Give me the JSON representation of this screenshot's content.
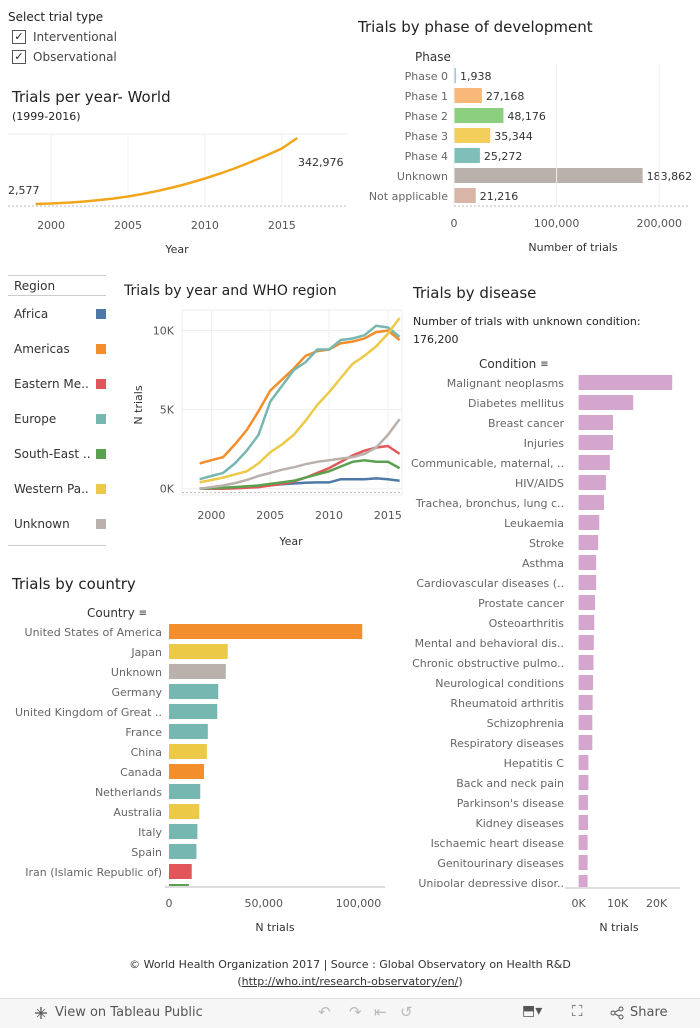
{
  "filter": {
    "title": "Select trial type",
    "options": [
      {
        "label": "Interventional",
        "checked": true
      },
      {
        "label": "Observational",
        "checked": true
      }
    ]
  },
  "trials_per_year": {
    "title": "Trials per year- World",
    "subtitle": "(1999-2016)",
    "start_label": "2,577",
    "end_label": "342,976",
    "x_ticks": [
      "2000",
      "2005",
      "2010",
      "2015"
    ],
    "xlabel": "Year"
  },
  "phase": {
    "title": "Trials by phase of development",
    "header": "Phase",
    "xlabel": "Number of trials",
    "x_ticks": [
      "0",
      "100,000",
      "200,000"
    ]
  },
  "region_legend": {
    "title": "Region",
    "items": [
      {
        "label": "Africa",
        "color": "#4e79a7"
      },
      {
        "label": "Americas",
        "color": "#f28e2b"
      },
      {
        "label": "Eastern Me..",
        "color": "#e15759"
      },
      {
        "label": "Europe",
        "color": "#76b7b2"
      },
      {
        "label": "South-East ..",
        "color": "#59a14f"
      },
      {
        "label": "Western Pa..",
        "color": "#edc948"
      },
      {
        "label": "Unknown",
        "color": "#bab0ac"
      }
    ]
  },
  "region_chart": {
    "title": "Trials by year and WHO region",
    "ylabel": "N trials",
    "xlabel": "Year",
    "y_ticks": [
      "0K",
      "5K",
      "10K"
    ],
    "x_ticks": [
      "2000",
      "2005",
      "2010",
      "2015"
    ]
  },
  "disease": {
    "title": "Trials by disease",
    "note": "Number of trials with unknown condition:",
    "note_value": "176,200",
    "header": "Condition",
    "xlabel": "N trials",
    "x_ticks": [
      "0K",
      "10K",
      "20K"
    ]
  },
  "country": {
    "title": "Trials by country",
    "header": "Country",
    "xlabel": "N trials",
    "x_ticks": [
      "0",
      "50,000",
      "100,000"
    ]
  },
  "footer": {
    "credit": "© World Health Organization 2017 | Source : Global Observatory on Health R&D",
    "link_open": "(",
    "link": "http://who.int/research-observatory/en/",
    "link_close": ")"
  },
  "toolbar": {
    "view_label": "View on Tableau Public",
    "share_label": "Share"
  },
  "chart_data": [
    {
      "id": "trials_per_year",
      "type": "line",
      "title": "Trials per year- World",
      "xlabel": "Year",
      "x": [
        1999,
        2000,
        2001,
        2002,
        2003,
        2004,
        2005,
        2006,
        2007,
        2008,
        2009,
        2010,
        2011,
        2012,
        2013,
        2014,
        2015,
        2016
      ],
      "series": [
        {
          "values": [
            2577,
            5000,
            9000,
            14500,
            21500,
            30500,
            41500,
            55000,
            71000,
            89500,
            110500,
            134000,
            160000,
            188500,
            219500,
            253000,
            289000,
            342976
          ],
          "color": "#f2a51a"
        }
      ],
      "xlim": [
        1997.2,
        2019.3
      ]
    },
    {
      "id": "phase",
      "type": "bar",
      "title": "Trials by phase of development",
      "xlabel": "Number of trials",
      "categories": [
        "Phase 0",
        "Phase 1",
        "Phase 2",
        "Phase 3",
        "Phase 4",
        "Unknown",
        "Not applicable"
      ],
      "values": [
        1938,
        27168,
        48176,
        35344,
        25272,
        183862,
        21216
      ],
      "value_labels": [
        "1,938",
        "27,168",
        "48,176",
        "35,344",
        "25,272",
        "183,862",
        "21,216"
      ],
      "colors": [
        "#9ecae1",
        "#f8b878",
        "#8ccf7e",
        "#f2cf5b",
        "#7fbfba",
        "#bab0ac",
        "#d8b5a5"
      ],
      "xlim": [
        0,
        230000
      ]
    },
    {
      "id": "region",
      "type": "line",
      "title": "Trials by year and WHO region",
      "xlabel": "Year",
      "ylabel": "N trials",
      "x": [
        1999,
        2000,
        2001,
        2002,
        2003,
        2004,
        2005,
        2006,
        2007,
        2008,
        2009,
        2010,
        2011,
        2012,
        2013,
        2014,
        2015,
        2016
      ],
      "series": [
        {
          "name": "Africa",
          "color": "#4e79a7",
          "values": [
            10,
            20,
            50,
            80,
            130,
            180,
            220,
            280,
            330,
            380,
            400,
            400,
            600,
            600,
            600,
            650,
            600,
            500
          ]
        },
        {
          "name": "Americas",
          "color": "#f28e2b",
          "values": [
            1600,
            1800,
            2000,
            2800,
            3700,
            4900,
            6200,
            6900,
            7600,
            8400,
            8700,
            8800,
            9200,
            9300,
            9500,
            9900,
            10000,
            9400
          ]
        },
        {
          "name": "Eastern Me..",
          "color": "#e15759",
          "values": [
            0,
            0,
            0,
            20,
            60,
            100,
            200,
            300,
            450,
            700,
            1000,
            1300,
            1700,
            2100,
            2400,
            2600,
            2700,
            2200
          ]
        },
        {
          "name": "Europe",
          "color": "#76b7b2",
          "values": [
            600,
            800,
            1000,
            1600,
            2400,
            3400,
            5500,
            6500,
            7500,
            8000,
            8800,
            8800,
            9400,
            9500,
            9700,
            10300,
            10200,
            9600
          ]
        },
        {
          "name": "South-East ..",
          "color": "#59a14f",
          "values": [
            0,
            30,
            60,
            100,
            150,
            200,
            300,
            400,
            500,
            700,
            900,
            1100,
            1400,
            1700,
            1800,
            1700,
            1700,
            1300
          ]
        },
        {
          "name": "Western Pa..",
          "color": "#edc948",
          "values": [
            400,
            550,
            700,
            900,
            1100,
            1600,
            2300,
            2800,
            3400,
            4300,
            5300,
            6100,
            7000,
            7900,
            8400,
            9000,
            9800,
            10800
          ]
        },
        {
          "name": "Unknown",
          "color": "#bab0ac",
          "values": [
            0,
            100,
            200,
            350,
            550,
            800,
            1000,
            1200,
            1350,
            1550,
            1700,
            1800,
            1900,
            2000,
            2200,
            2600,
            3400,
            4400
          ]
        }
      ],
      "ylim": [
        -400,
        11300
      ],
      "xlim": [
        1997.5,
        2016.2
      ]
    },
    {
      "id": "disease",
      "type": "bar",
      "title": "Trials by disease",
      "xlabel": "N trials",
      "categories": [
        "Malignant neoplasms",
        "Diabetes mellitus",
        "Breast cancer",
        "Injuries",
        "Communicable, maternal, ..",
        "HIV/AIDS",
        "Trachea, bronchus, lung c..",
        "Leukaemia",
        "Stroke",
        "Asthma",
        "Cardiovascular diseases (..",
        "Prostate cancer",
        "Osteoarthritis",
        "Mental and behavioral dis..",
        "Chronic obstructive pulmo..",
        "Neurological conditions",
        "Rheumatoid arthritis",
        "Schizophrenia",
        "Respiratory diseases",
        "Hepatitis C",
        "Back and neck pain",
        "Parkinson's disease",
        "Kidney diseases",
        "Ischaemic heart disease",
        "Genitourinary diseases",
        "Unipolar depressive disor.."
      ],
      "values": [
        24000,
        14000,
        8800,
        8800,
        8000,
        7000,
        6500,
        5300,
        5000,
        4500,
        4500,
        4200,
        4000,
        3900,
        3800,
        3700,
        3600,
        3500,
        3500,
        2500,
        2500,
        2400,
        2400,
        2300,
        2300,
        2300
      ],
      "color": "#d4a5cd",
      "xlim": [
        -3500,
        26000
      ]
    },
    {
      "id": "country",
      "type": "bar",
      "title": "Trials by country",
      "xlabel": "N trials",
      "categories": [
        "United States of America",
        "Japan",
        "Unknown",
        "Germany",
        "United Kingdom of Great ..",
        "France",
        "China",
        "Canada",
        "Netherlands",
        "Australia",
        "Italy",
        "Spain",
        "Iran (Islamic Republic of)"
      ],
      "values": [
        102000,
        31000,
        30000,
        26000,
        25500,
        20500,
        20000,
        18500,
        16500,
        16000,
        15000,
        14500,
        12000
      ],
      "colors": [
        "#f28e2b",
        "#edc948",
        "#bab0ac",
        "#76b7b2",
        "#76b7b2",
        "#76b7b2",
        "#edc948",
        "#f28e2b",
        "#76b7b2",
        "#edc948",
        "#76b7b2",
        "#76b7b2",
        "#e15759"
      ],
      "xlim": [
        -2100,
        114000
      ]
    }
  ]
}
